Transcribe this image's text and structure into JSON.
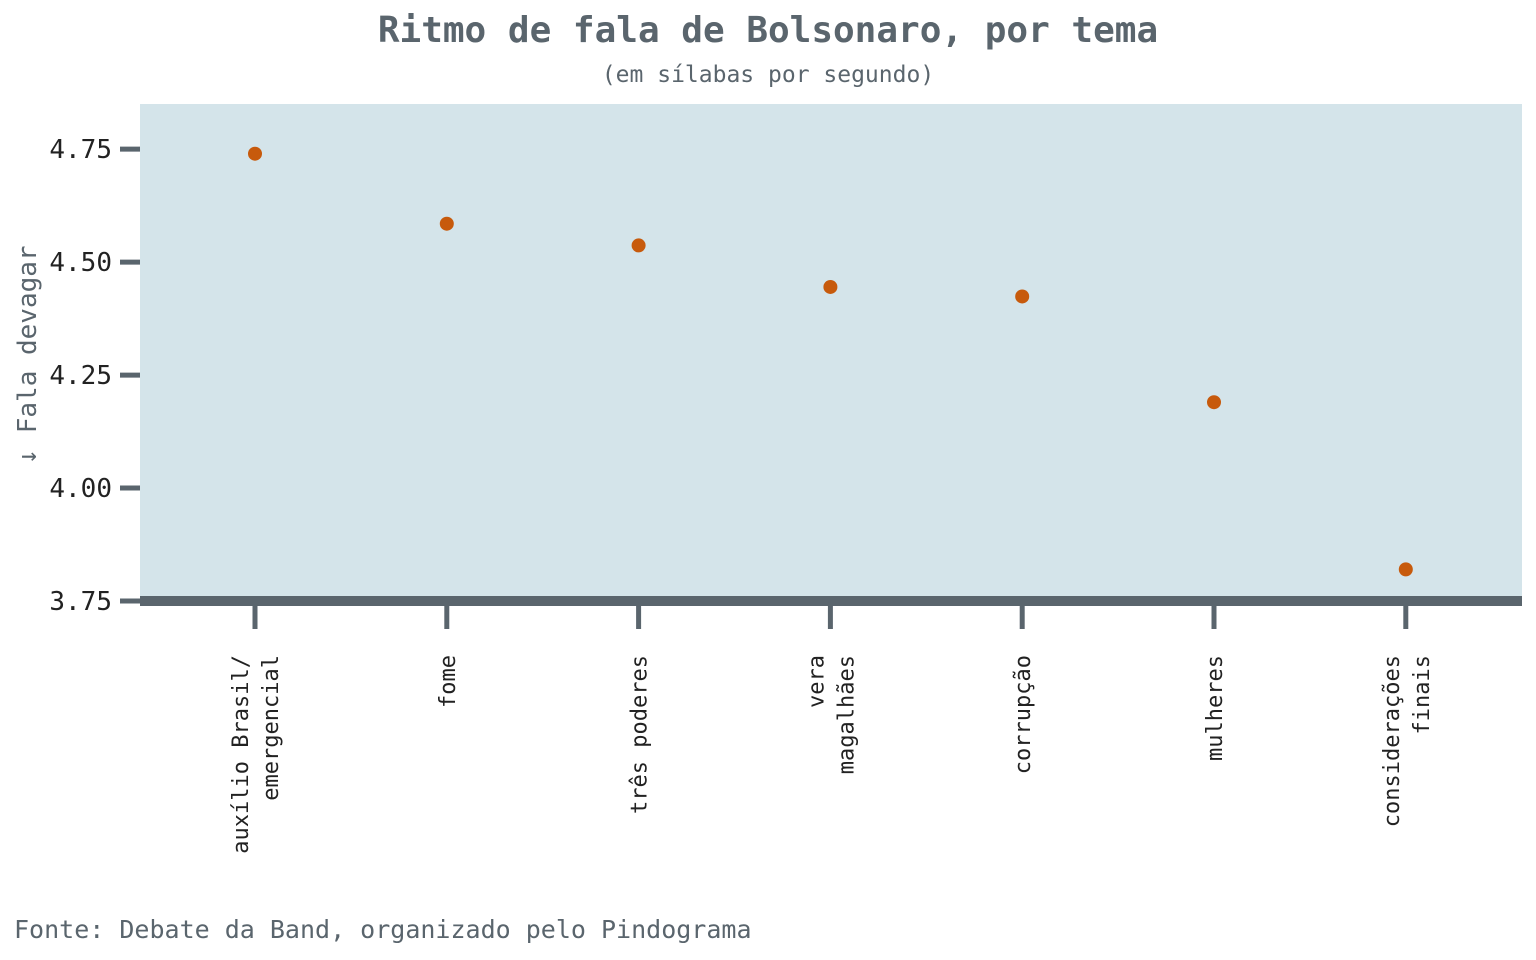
{
  "chart_data": {
    "type": "scatter",
    "title": "Ritmo de fala de Bolsonaro, por tema",
    "subtitle": "(em sílabas por segundo)",
    "ylabel": "↓ Fala devagar",
    "xlabel": "",
    "categories": [
      [
        "auxílio Brasil/",
        "emergencial"
      ],
      [
        "fome"
      ],
      [
        "três poderes"
      ],
      [
        "vera",
        "magalhães"
      ],
      [
        "corrupção"
      ],
      [
        "mulheres"
      ],
      [
        "considerações",
        "finais"
      ]
    ],
    "values": [
      4.74,
      4.585,
      4.537,
      4.445,
      4.424,
      4.19,
      3.82
    ],
    "ylim": [
      3.75,
      4.85
    ],
    "yticks": [
      "3.75",
      "4.00",
      "4.25",
      "4.50",
      "4.75"
    ],
    "ytick_values": [
      3.75,
      4.0,
      4.25,
      4.5,
      4.75
    ],
    "grid": false,
    "legend": "none",
    "colors": {
      "panel": "#d4e4ea",
      "point": "#c75a0c",
      "axis": "#5a656d"
    }
  },
  "source": "Fonte: Debate da Band, organizado pelo Pindograma"
}
